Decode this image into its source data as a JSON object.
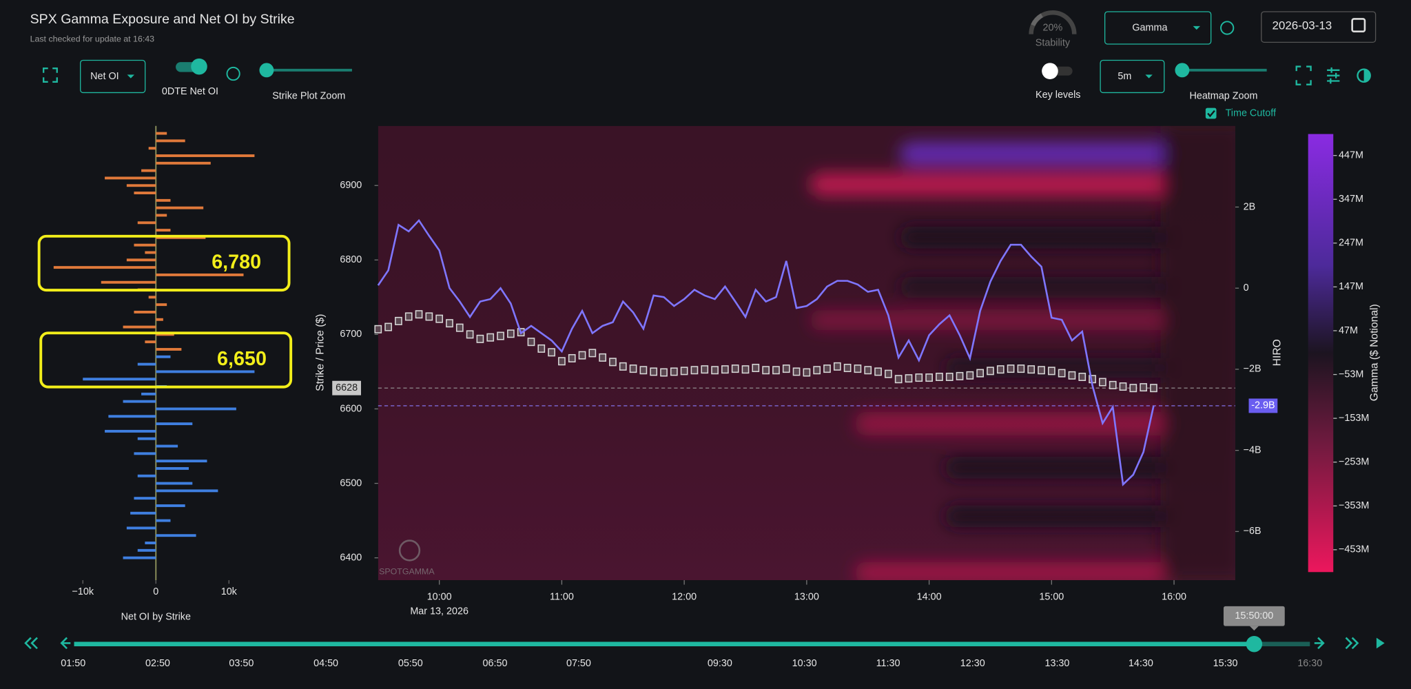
{
  "header": {
    "title": "SPX Gamma Exposure and Net OI by Strike",
    "subtitle": "Last checked for update at 16:43"
  },
  "controls": {
    "stability_value": "20%",
    "stability_label": "Stability",
    "metric": "Gamma",
    "date": "2026-03-13",
    "oi_mode": "Net OI",
    "toggle_label": "0DTE Net OI",
    "strike_zoom_label": "Strike Plot Zoom",
    "key_levels_label": "Key levels",
    "interval": "5m",
    "heatmap_zoom_label": "Heatmap Zoom",
    "time_cutoff_label": "Time Cutoff"
  },
  "watermark": "SPOTGAMMA",
  "timeline": {
    "current": "15:50:00",
    "labels": [
      "01:50",
      "02:50",
      "03:50",
      "04:50",
      "05:50",
      "06:50",
      "07:50",
      "09:30",
      "10:30",
      "11:30",
      "12:30",
      "13:30",
      "14:30",
      "15:30",
      "16:30"
    ]
  },
  "chart_data": [
    {
      "type": "bar",
      "orientation": "horizontal",
      "xlabel": "Net OI by Strike",
      "strikes": [
        6400,
        6410,
        6420,
        6430,
        6440,
        6450,
        6460,
        6470,
        6480,
        6490,
        6500,
        6510,
        6520,
        6530,
        6540,
        6550,
        6560,
        6570,
        6580,
        6590,
        6600,
        6610,
        6620,
        6630,
        6640,
        6650,
        6660,
        6670,
        6680,
        6690,
        6700,
        6710,
        6720,
        6730,
        6740,
        6750,
        6760,
        6770,
        6780,
        6790,
        6800,
        6810,
        6820,
        6830,
        6840,
        6850,
        6860,
        6870,
        6880,
        6890,
        6900,
        6910,
        6920,
        6930,
        6940,
        6950,
        6960,
        6970
      ],
      "series": [
        {
          "color": "#3f7fe0",
          "values": [
            -4500,
            -2500,
            -1500,
            5500,
            -4000,
            2000,
            -3500,
            4000,
            -3000,
            8500,
            5000,
            -2500,
            4500,
            7000,
            -3000,
            3000,
            -2500,
            -7000,
            5000,
            -6500,
            11000,
            -4500,
            -2000,
            1500,
            -10000,
            13500,
            -2500,
            2000,
            null,
            null,
            null,
            null,
            null,
            null,
            null,
            null,
            null,
            null,
            null,
            null,
            null,
            null,
            null,
            null,
            null,
            null,
            null,
            null,
            null,
            null,
            null,
            null,
            null,
            null,
            null,
            null,
            null,
            null
          ]
        },
        {
          "color": "#e0793a",
          "values": [
            null,
            null,
            null,
            null,
            null,
            null,
            null,
            null,
            null,
            null,
            null,
            null,
            null,
            null,
            null,
            null,
            null,
            null,
            null,
            null,
            null,
            null,
            null,
            null,
            null,
            null,
            null,
            null,
            3500,
            -1500,
            2500,
            -4500,
            1000,
            -3000,
            1500,
            -1000,
            -2500,
            -7500,
            12000,
            -14000,
            -4000,
            -1500,
            -3000,
            6800,
            2000,
            -2500,
            1500,
            6500,
            2000,
            -3000,
            -4000,
            -7000,
            -2000,
            7500,
            13500,
            -1000,
            4000,
            1500
          ]
        }
      ],
      "xlim": [
        -16000,
        17000
      ],
      "xticks": [
        {
          "value": -10000,
          "label": "−10k"
        },
        0,
        {
          "value": 10000,
          "label": "10k"
        }
      ],
      "ylim": [
        6370,
        6980
      ],
      "annotations": [
        {
          "value": 6780,
          "label": "6,780"
        },
        {
          "value": 6650,
          "label": "6,650"
        }
      ]
    },
    {
      "type": "line",
      "ylabel": "Strike / Price ($)",
      "y2label": "HIRO",
      "date_label": "Mar 13, 2026",
      "x": [
        "09:30",
        "09:35",
        "09:40",
        "09:45",
        "09:50",
        "09:55",
        "10:00",
        "10:05",
        "10:10",
        "10:15",
        "10:20",
        "10:25",
        "10:30",
        "10:35",
        "10:40",
        "10:45",
        "10:50",
        "10:55",
        "11:00",
        "11:05",
        "11:10",
        "11:15",
        "11:20",
        "11:25",
        "11:30",
        "11:35",
        "11:40",
        "11:45",
        "11:50",
        "11:55",
        "12:00",
        "12:05",
        "12:10",
        "12:15",
        "12:20",
        "12:25",
        "12:30",
        "12:35",
        "12:40",
        "12:45",
        "12:50",
        "12:55",
        "13:00",
        "13:05",
        "13:10",
        "13:15",
        "13:20",
        "13:25",
        "13:30",
        "13:35",
        "13:40",
        "13:45",
        "13:50",
        "13:55",
        "14:00",
        "14:05",
        "14:10",
        "14:15",
        "14:20",
        "14:25",
        "14:30",
        "14:35",
        "14:40",
        "14:45",
        "14:50",
        "14:55",
        "15:00",
        "15:05",
        "15:10",
        "15:15",
        "15:20",
        "15:25",
        "15:30",
        "15:35",
        "15:40",
        "15:45",
        "15:50"
      ],
      "series": [
        {
          "color": "#d6d6d6",
          "style": "candle",
          "values": [
            6707,
            6710,
            6718,
            6724,
            6727,
            6724,
            6721,
            6715,
            6709,
            6700,
            6694,
            6696,
            6698,
            6701,
            6703,
            6690,
            6681,
            6676,
            6664,
            6668,
            6672,
            6675,
            6669,
            6663,
            6657,
            6654,
            6652,
            6650,
            6649,
            6650,
            6651,
            6652,
            6653,
            6652,
            6653,
            6654,
            6653,
            6655,
            6652,
            6652,
            6654,
            6650,
            6649,
            6652,
            6654,
            6657,
            6655,
            6654,
            6652,
            6650,
            6647,
            6640,
            6641,
            6642,
            6642,
            6643,
            6643,
            6644,
            6645,
            6648,
            6651,
            6653,
            6654,
            6654,
            6653,
            6652,
            6651,
            6648,
            6645,
            6643,
            6640,
            6636,
            6632,
            6630,
            6628,
            6629,
            6628
          ]
        },
        {
          "color": "#7f76ff",
          "axis": "y2",
          "values": [
            0.07,
            0.44,
            1.56,
            1.4,
            1.67,
            1.29,
            0.93,
            0,
            -0.33,
            -0.71,
            -0.33,
            -0.27,
            0,
            -0.38,
            -1.11,
            -0.93,
            -1.11,
            -1.29,
            -1.56,
            -1.0,
            -0.56,
            -1.11,
            -0.93,
            -0.84,
            -0.33,
            -0.6,
            -1.0,
            -0.18,
            -0.22,
            -0.44,
            -0.27,
            -0.04,
            -0.18,
            -0.27,
            0.04,
            -0.33,
            -0.71,
            -0.04,
            -0.33,
            -0.22,
            0.67,
            -0.49,
            -0.44,
            -0.27,
            0.04,
            0.18,
            0.18,
            0.09,
            -0.09,
            -0.04,
            -0.67,
            -1.71,
            -1.29,
            -1.78,
            -1.16,
            -0.89,
            -0.67,
            -1.16,
            -1.73,
            -0.56,
            0.16,
            0.67,
            1.07,
            1.07,
            0.78,
            0.53,
            -0.73,
            -0.78,
            -1.29,
            -1.07,
            -2.4,
            -3.33,
            -2.93,
            -4.84,
            -4.6,
            -4.04,
            -2.9
          ]
        }
      ],
      "xlim": [
        "09:30",
        "16:30"
      ],
      "xticks": [
        "10:00",
        "11:00",
        "12:00",
        "13:00",
        "14:00",
        "15:00",
        "16:00"
      ],
      "ylim": [
        6370,
        6980
      ],
      "yticks": [
        6400,
        6500,
        6600,
        6700,
        6800,
        6900
      ],
      "y2lim": [
        -7.2,
        4
      ],
      "y2ticks": [
        {
          "value": -6,
          "label": "−6B"
        },
        {
          "value": -4,
          "label": "−4B"
        },
        {
          "value": -2,
          "label": "−2B"
        },
        0,
        {
          "value": 2,
          "label": "2B"
        }
      ],
      "last_price": 6628,
      "hiro_last": {
        "value": -2.9,
        "label": "-2.9B"
      },
      "colorbar": {
        "label": "Gamma ($ Notional)",
        "zlim": [
          -504,
          496
        ],
        "ticks": [
          {
            "value": 447,
            "label": "447M"
          },
          {
            "value": 347,
            "label": "347M"
          },
          {
            "value": 247,
            "label": "247M"
          },
          {
            "value": 147,
            "label": "147M"
          },
          {
            "value": 47,
            "label": "47M"
          },
          {
            "value": -53,
            "label": "−53M"
          },
          {
            "value": -153,
            "label": "−153M"
          },
          {
            "value": -253,
            "label": "−253M"
          },
          {
            "value": -353,
            "label": "−353M"
          },
          {
            "value": -453,
            "label": "−453M"
          }
        ]
      }
    }
  ]
}
